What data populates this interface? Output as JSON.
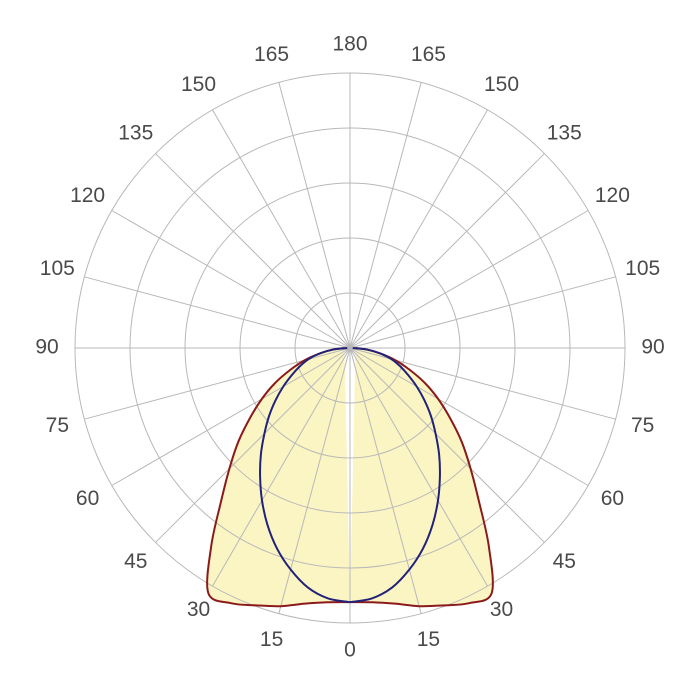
{
  "chart_data": {
    "type": "polar",
    "angle_ticks": [
      0,
      15,
      30,
      45,
      60,
      75,
      90,
      105,
      120,
      135,
      150,
      165,
      180
    ],
    "rlim": [
      0,
      5
    ],
    "rticks": [
      1,
      2,
      3,
      4,
      5
    ],
    "grid": true,
    "fill": "#fbf5c4",
    "angles": [
      0,
      5,
      10,
      15,
      20,
      25,
      30,
      35,
      40,
      45,
      50,
      55,
      60,
      65,
      70,
      75,
      80,
      85,
      90
    ],
    "series": [
      {
        "color": "#8b1a1a",
        "values": [
          4.62,
          4.64,
          4.72,
          4.86,
          4.98,
          5.12,
          5.15,
          4.4,
          3.65,
          3.1,
          2.65,
          2.22,
          1.85,
          1.5,
          1.15,
          0.85,
          0.55,
          0.3,
          0.1
        ]
      },
      {
        "color": "#22227a",
        "values": [
          4.62,
          4.57,
          4.42,
          4.17,
          3.88,
          3.55,
          3.2,
          2.85,
          2.52,
          2.2,
          1.92,
          1.65,
          1.4,
          1.17,
          0.97,
          0.78,
          0.55,
          0.3,
          0.05
        ]
      }
    ]
  }
}
